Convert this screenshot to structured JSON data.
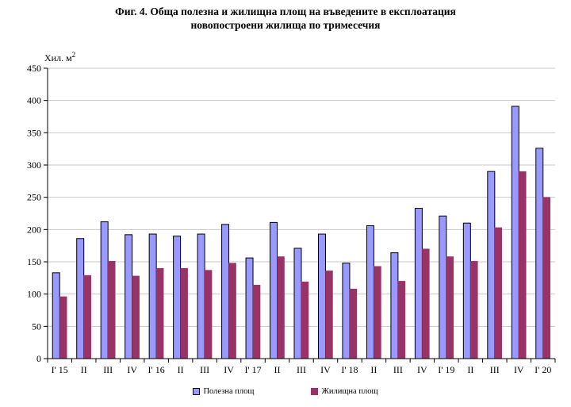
{
  "title": {
    "line1": "Фиг. 4. Обща полезна и жилищна площ на въведените в експлоатация",
    "line2": "новопостроени жилища по тримесечия"
  },
  "chart_data": {
    "type": "bar",
    "title": "Фиг. 4. Обща полезна и жилищна площ на въведените в експлоатация новопостроени жилища по тримесечия",
    "unit_label": {
      "text": "Хил. м",
      "sup": "2"
    },
    "categories": [
      "I' 15",
      "II",
      "III",
      "IV",
      "I' 16",
      "II",
      "III",
      "IV",
      "I' 17",
      "II",
      "III",
      "IV",
      "I' 18",
      "II",
      "III",
      "IV",
      "I' 19",
      "II",
      "III",
      "IV",
      "I' 20"
    ],
    "series": [
      {
        "name": "Полезна площ",
        "color": "#9999FF",
        "border": "#000000",
        "values": [
          133,
          186,
          212,
          192,
          193,
          190,
          193,
          208,
          156,
          211,
          171,
          193,
          148,
          206,
          164,
          233,
          221,
          210,
          290,
          391,
          326
        ]
      },
      {
        "name": "Жилищна площ",
        "color": "#993366",
        "border": "#993366",
        "values": [
          96,
          129,
          151,
          128,
          140,
          140,
          137,
          148,
          114,
          158,
          119,
          136,
          108,
          143,
          120,
          170,
          158,
          151,
          203,
          290,
          250
        ]
      }
    ],
    "ylim": [
      0,
      450
    ],
    "yticks": [
      0,
      50,
      100,
      150,
      200,
      250,
      300,
      350,
      400,
      450
    ],
    "grid": "horizontal",
    "gridline_color": "#c8c8c8",
    "axis_color": "#000000",
    "legend_position": "bottom",
    "xlabel": "",
    "ylabel": "Хил. м2"
  }
}
